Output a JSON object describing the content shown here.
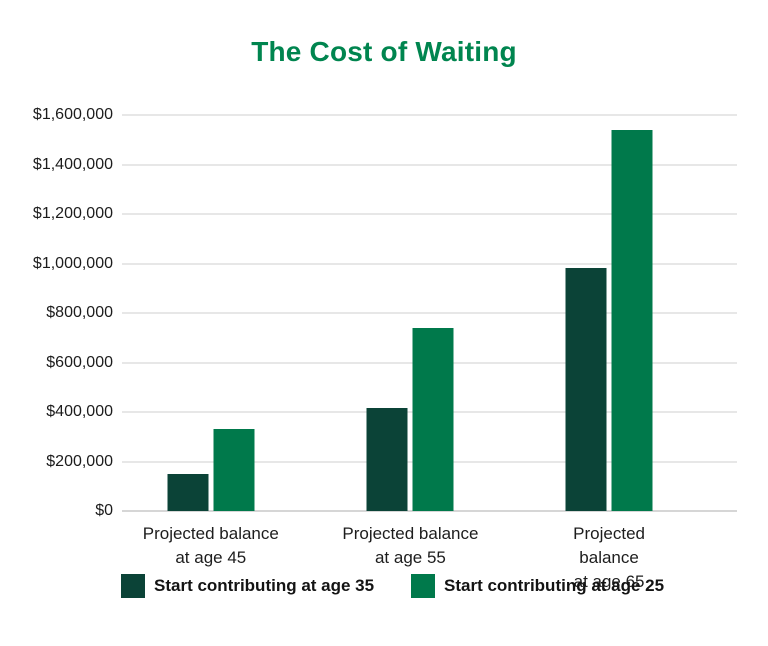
{
  "chart_data": {
    "type": "bar",
    "title": "The Cost of Waiting",
    "categories": [
      "Projected balance\nat age 45",
      "Projected balance\nat age 55",
      "Projected balance\nat age 65"
    ],
    "series": [
      {
        "name": "Start contributing at age 35",
        "color": "#0B4337",
        "values": [
          148000,
          418000,
          980000
        ]
      },
      {
        "name": "Start contributing at age 25",
        "color": "#00794B",
        "values": [
          332000,
          738000,
          1540000
        ]
      }
    ],
    "xlabel": "",
    "ylabel": "",
    "ylim": [
      0,
      1600000
    ],
    "ytick_interval": 200000,
    "ytick_labels": [
      "$0",
      "$200,000",
      "$400,000",
      "$600,000",
      "$800,000",
      "$1,000,000",
      "$1,200,000",
      "$1,400,000",
      "$1,600,000"
    ],
    "grid": true,
    "legend_position": "bottom",
    "colors": {
      "title": "#00854F",
      "axis_text": "#1c1c1c",
      "gridline": "#e7e7e7",
      "baseline": "#d6d6d6",
      "background": "#ffffff"
    }
  }
}
